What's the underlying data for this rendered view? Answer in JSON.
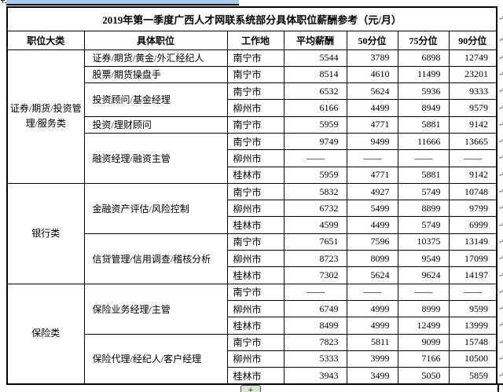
{
  "table": {
    "title": "2019年第一季度广西人才网联系统部分具体职位薪酬参考（元/月）",
    "columns": [
      "职位大类",
      "具体职位",
      "工作地",
      "平均薪酬",
      "50分位",
      "75分位",
      "90分位"
    ],
    "no_data": "——",
    "categories": [
      {
        "name": "证券/期货/投资管理/服务类",
        "jobs": [
          {
            "name": "证券/期货/黄金/外汇经纪人",
            "rows": [
              {
                "city": "南宁市",
                "avg": "5544",
                "p50": "3789",
                "p75": "6898",
                "p90": "12749"
              }
            ]
          },
          {
            "name": "股票/期货操盘手",
            "rows": [
              {
                "city": "南宁市",
                "avg": "8514",
                "p50": "4610",
                "p75": "11499",
                "p90": "23201"
              }
            ]
          },
          {
            "name": "投资顾问/基金经理",
            "rows": [
              {
                "city": "南宁市",
                "avg": "6532",
                "p50": "5624",
                "p75": "5936",
                "p90": "9333"
              },
              {
                "city": "柳州市",
                "avg": "6166",
                "p50": "4499",
                "p75": "8949",
                "p90": "9579"
              }
            ]
          },
          {
            "name": "投资/理财顾问",
            "rows": [
              {
                "city": "南宁市",
                "avg": "5959",
                "p50": "4771",
                "p75": "5881",
                "p90": "9142"
              }
            ]
          },
          {
            "name": "融资经理/融资主管",
            "rows": [
              {
                "city": "南宁市",
                "avg": "9749",
                "p50": "9499",
                "p75": "11666",
                "p90": "13665"
              },
              {
                "city": "柳州市",
                "avg": "——",
                "p50": "——",
                "p75": "——",
                "p90": "——"
              },
              {
                "city": "桂林市",
                "avg": "5959",
                "p50": "4771",
                "p75": "5881",
                "p90": "9142"
              }
            ]
          }
        ]
      },
      {
        "name": "银行类",
        "jobs": [
          {
            "name": "金融资产评估/风险控制",
            "rows": [
              {
                "city": "南宁市",
                "avg": "5832",
                "p50": "4927",
                "p75": "5749",
                "p90": "10748"
              },
              {
                "city": "柳州市",
                "avg": "6732",
                "p50": "5499",
                "p75": "8899",
                "p90": "9799"
              },
              {
                "city": "桂林市",
                "avg": "4599",
                "p50": "4499",
                "p75": "5749",
                "p90": "6999"
              }
            ]
          },
          {
            "name": "信贷管理/信用调查/稽核分析",
            "rows": [
              {
                "city": "南宁市",
                "avg": "7651",
                "p50": "7596",
                "p75": "10375",
                "p90": "13149"
              },
              {
                "city": "柳州市",
                "avg": "8723",
                "p50": "8099",
                "p75": "9549",
                "p90": "17099"
              },
              {
                "city": "桂林市",
                "avg": "7302",
                "p50": "5624",
                "p75": "9624",
                "p90": "14197"
              }
            ]
          }
        ]
      },
      {
        "name": "保险类",
        "jobs": [
          {
            "name": "保险业务经理/主管",
            "rows": [
              {
                "city": "南宁市",
                "avg": "——",
                "p50": "——",
                "p75": "——",
                "p90": "——"
              },
              {
                "city": "柳州市",
                "avg": "6749",
                "p50": "4999",
                "p75": "8999",
                "p90": "9599"
              },
              {
                "city": "桂林市",
                "avg": "8499",
                "p50": "4999",
                "p75": "12499",
                "p90": "13999"
              }
            ]
          },
          {
            "name": "保险代理/经纪人/客户经理",
            "rows": [
              {
                "city": "南宁市",
                "avg": "7823",
                "p50": "5811",
                "p75": "9099",
                "p90": "15748"
              },
              {
                "city": "柳州市",
                "avg": "5333",
                "p50": "3999",
                "p75": "7166",
                "p90": "10500"
              },
              {
                "city": "桂林市",
                "avg": "3943",
                "p50": "3499",
                "p75": "5050",
                "p90": "5859"
              }
            ]
          }
        ]
      }
    ]
  },
  "marks": {
    "row_end": "↵"
  },
  "controls": {
    "add_row_label": "+"
  }
}
